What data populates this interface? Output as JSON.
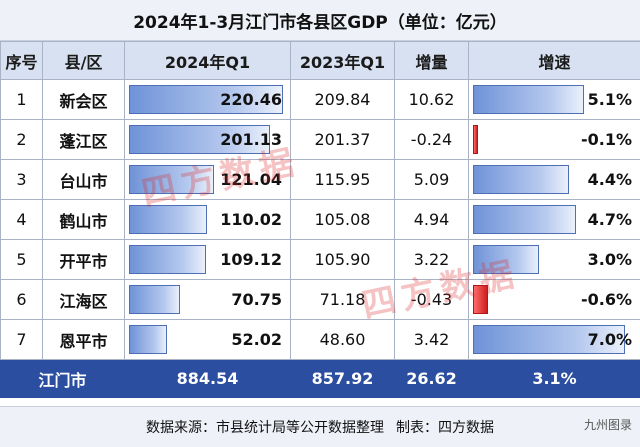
{
  "title": "2024年1-3月江门市各县区GDP（单位：亿元）",
  "headers": {
    "idx": "序号",
    "region": "县/区",
    "q1_2024": "2024年Q1",
    "q1_2023": "2023年Q1",
    "increase": "增量",
    "growth": "增速"
  },
  "rows": [
    {
      "idx": "1",
      "region": "新会区",
      "q1_2024": "220.46",
      "q1_2023": "209.84",
      "increase": "10.62",
      "growth": "5.1%",
      "v2024": 220.46,
      "g": 5.1
    },
    {
      "idx": "2",
      "region": "蓬江区",
      "q1_2024": "201.13",
      "q1_2023": "201.37",
      "increase": "-0.24",
      "growth": "-0.1%",
      "v2024": 201.13,
      "g": -0.1
    },
    {
      "idx": "3",
      "region": "台山市",
      "q1_2024": "121.04",
      "q1_2023": "115.95",
      "increase": "5.09",
      "growth": "4.4%",
      "v2024": 121.04,
      "g": 4.4
    },
    {
      "idx": "4",
      "region": "鹤山市",
      "q1_2024": "110.02",
      "q1_2023": "105.08",
      "increase": "4.94",
      "growth": "4.7%",
      "v2024": 110.02,
      "g": 4.7
    },
    {
      "idx": "5",
      "region": "开平市",
      "q1_2024": "109.12",
      "q1_2023": "105.90",
      "increase": "3.22",
      "growth": "3.0%",
      "v2024": 109.12,
      "g": 3.0
    },
    {
      "idx": "6",
      "region": "江海区",
      "q1_2024": "70.75",
      "q1_2023": "71.18",
      "increase": "-0.43",
      "growth": "-0.6%",
      "v2024": 70.75,
      "g": -0.6
    },
    {
      "idx": "7",
      "region": "恩平市",
      "q1_2024": "52.02",
      "q1_2023": "48.60",
      "increase": "3.42",
      "growth": "7.0%",
      "v2024": 52.02,
      "g": 7.0
    }
  ],
  "total": {
    "region": "江门市",
    "q1_2024": "884.54",
    "q1_2023": "857.92",
    "increase": "26.62",
    "growth": "3.1%"
  },
  "footer": {
    "source": "数据来源：市县统计局等公开数据整理",
    "maker": "制表：四方数据"
  },
  "watermark": "四方数据",
  "corner_mark": "九州图录"
}
